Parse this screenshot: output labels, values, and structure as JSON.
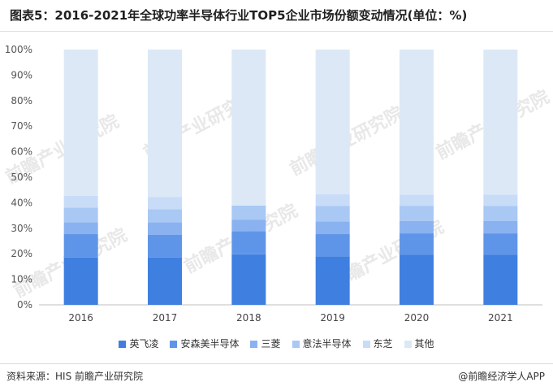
{
  "title": "图表5：2016-2021年全球功率半导体行业TOP5企业市场份额变动情况(单位：%)",
  "source": "资料来源：HIS 前瞻产业研究院",
  "brand": "@前瞻经济学人APP",
  "watermark": "前瞻产业研究院",
  "colors": {
    "series": [
      "#3f7fe0",
      "#5f95e8",
      "#8ab2f0",
      "#a9c8f4",
      "#c8dcf8",
      "#dce8f6"
    ],
    "axis": "#bfbfbf",
    "text": "#333333"
  },
  "chart_data": {
    "type": "bar",
    "stacked": true,
    "categories": [
      "2016",
      "2017",
      "2018",
      "2019",
      "2020",
      "2021"
    ],
    "ylim": [
      0,
      100
    ],
    "yticks": [
      "0%",
      "10%",
      "20%",
      "30%",
      "40%",
      "50%",
      "60%",
      "70%",
      "80%",
      "90%",
      "100%"
    ],
    "legend_position": "bottom",
    "series": [
      {
        "name": "英飞凌",
        "values": [
          18.5,
          18.5,
          19.8,
          19.0,
          19.7,
          19.7
        ]
      },
      {
        "name": "安森美半导体",
        "values": [
          9.2,
          9.0,
          9.0,
          8.7,
          8.3,
          8.3
        ]
      },
      {
        "name": "三菱",
        "values": [
          4.6,
          4.8,
          4.6,
          5.0,
          4.9,
          4.8
        ]
      },
      {
        "name": "意法半导体",
        "values": [
          5.8,
          5.2,
          5.5,
          6.0,
          5.9,
          5.9
        ]
      },
      {
        "name": "东芝",
        "values": [
          4.6,
          4.8,
          0.0,
          4.6,
          4.4,
          4.5
        ]
      },
      {
        "name": "其他",
        "values": [
          57.3,
          57.7,
          61.1,
          56.7,
          56.8,
          56.8
        ]
      }
    ]
  }
}
